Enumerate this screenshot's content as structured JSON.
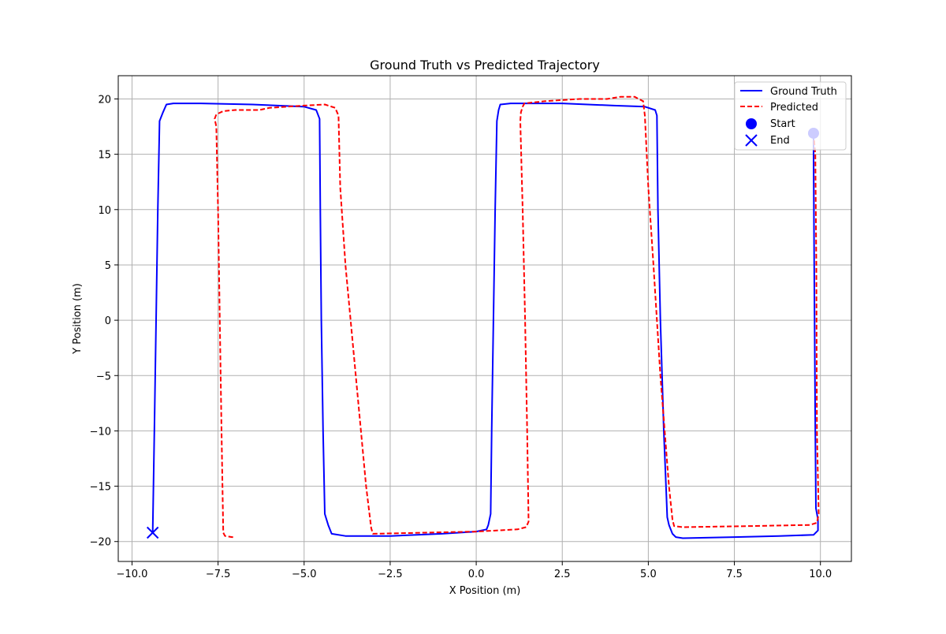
{
  "chart_data": {
    "type": "line",
    "title": "Ground Truth vs Predicted Trajectory",
    "xlabel": "X Position (m)",
    "ylabel": "Y Position (m)",
    "xlim": [
      -10.4,
      10.9
    ],
    "ylim": [
      -21.8,
      22.1
    ],
    "grid": true,
    "legend_position": "top-right",
    "x_ticks": [
      -10.0,
      -7.5,
      -5.0,
      -2.5,
      0.0,
      2.5,
      5.0,
      7.5,
      10.0
    ],
    "x_tick_labels": [
      "−10.0",
      "−7.5",
      "−5.0",
      "−2.5",
      "0.0",
      "2.5",
      "5.0",
      "7.5",
      "10.0"
    ],
    "y_ticks": [
      -20,
      -15,
      -10,
      -5,
      0,
      5,
      10,
      15,
      20
    ],
    "y_tick_labels": [
      "−20",
      "−15",
      "−10",
      "−5",
      "0",
      "5",
      "10",
      "15",
      "20"
    ],
    "series": [
      {
        "name": "Ground Truth",
        "color": "#0000ff",
        "style": "solid",
        "points": [
          [
            9.8,
            16.9
          ],
          [
            9.8,
            15.0
          ],
          [
            9.82,
            5.0
          ],
          [
            9.85,
            -10.0
          ],
          [
            9.87,
            -17.0
          ],
          [
            9.93,
            -18.0
          ],
          [
            9.93,
            -19.0
          ],
          [
            9.8,
            -19.4
          ],
          [
            8.8,
            -19.5
          ],
          [
            7.5,
            -19.6
          ],
          [
            6.0,
            -19.7
          ],
          [
            5.8,
            -19.6
          ],
          [
            5.7,
            -19.3
          ],
          [
            5.6,
            -18.5
          ],
          [
            5.55,
            -17.8
          ],
          [
            5.45,
            -10.0
          ],
          [
            5.35,
            0.0
          ],
          [
            5.28,
            10.0
          ],
          [
            5.25,
            18.5
          ],
          [
            5.2,
            19.0
          ],
          [
            4.9,
            19.3
          ],
          [
            4.0,
            19.4
          ],
          [
            2.5,
            19.6
          ],
          [
            1.0,
            19.6
          ],
          [
            0.7,
            19.5
          ],
          [
            0.65,
            19.0
          ],
          [
            0.6,
            18.0
          ],
          [
            0.55,
            10.0
          ],
          [
            0.5,
            0.0
          ],
          [
            0.45,
            -10.0
          ],
          [
            0.42,
            -17.5
          ],
          [
            0.35,
            -18.5
          ],
          [
            0.3,
            -18.9
          ],
          [
            0.0,
            -19.1
          ],
          [
            -1.0,
            -19.3
          ],
          [
            -2.5,
            -19.5
          ],
          [
            -3.8,
            -19.5
          ],
          [
            -4.2,
            -19.3
          ],
          [
            -4.3,
            -18.5
          ],
          [
            -4.4,
            -17.5
          ],
          [
            -4.45,
            -10.0
          ],
          [
            -4.5,
            0.0
          ],
          [
            -4.53,
            10.0
          ],
          [
            -4.55,
            18.2
          ],
          [
            -4.65,
            19.0
          ],
          [
            -5.0,
            19.3
          ],
          [
            -6.5,
            19.5
          ],
          [
            -8.0,
            19.6
          ],
          [
            -8.8,
            19.6
          ],
          [
            -9.0,
            19.5
          ],
          [
            -9.1,
            18.8
          ],
          [
            -9.2,
            18.0
          ],
          [
            -9.25,
            10.0
          ],
          [
            -9.3,
            0.0
          ],
          [
            -9.35,
            -10.0
          ],
          [
            -9.4,
            -19.2
          ]
        ]
      },
      {
        "name": "Predicted",
        "color": "#ff0000",
        "style": "dashed",
        "points": [
          [
            9.8,
            16.9
          ],
          [
            9.85,
            15.0
          ],
          [
            9.88,
            5.0
          ],
          [
            9.9,
            -10.0
          ],
          [
            9.95,
            -17.5
          ],
          [
            9.9,
            -18.3
          ],
          [
            9.7,
            -18.5
          ],
          [
            8.0,
            -18.6
          ],
          [
            6.0,
            -18.7
          ],
          [
            5.75,
            -18.6
          ],
          [
            5.7,
            -18.0
          ],
          [
            5.6,
            -15.0
          ],
          [
            5.35,
            -5.0
          ],
          [
            5.15,
            5.0
          ],
          [
            5.0,
            12.0
          ],
          [
            4.9,
            18.5
          ],
          [
            4.85,
            19.8
          ],
          [
            4.6,
            20.2
          ],
          [
            4.2,
            20.2
          ],
          [
            3.8,
            20.0
          ],
          [
            3.0,
            20.0
          ],
          [
            2.0,
            19.8
          ],
          [
            1.4,
            19.6
          ],
          [
            1.35,
            19.3
          ],
          [
            1.3,
            18.8
          ],
          [
            1.28,
            18.0
          ],
          [
            1.35,
            10.0
          ],
          [
            1.42,
            0.0
          ],
          [
            1.48,
            -10.0
          ],
          [
            1.52,
            -18.2
          ],
          [
            1.45,
            -18.7
          ],
          [
            1.2,
            -18.9
          ],
          [
            0.0,
            -19.1
          ],
          [
            -1.5,
            -19.2
          ],
          [
            -3.0,
            -19.3
          ],
          [
            -3.05,
            -18.8
          ],
          [
            -3.2,
            -15.0
          ],
          [
            -3.5,
            -5.0
          ],
          [
            -3.8,
            5.0
          ],
          [
            -3.95,
            12.0
          ],
          [
            -4.0,
            18.5
          ],
          [
            -4.1,
            19.2
          ],
          [
            -4.4,
            19.5
          ],
          [
            -5.0,
            19.4
          ],
          [
            -6.0,
            19.2
          ],
          [
            -6.3,
            19.0
          ],
          [
            -7.0,
            19.0
          ],
          [
            -7.35,
            18.9
          ],
          [
            -7.55,
            18.6
          ],
          [
            -7.6,
            18.2
          ],
          [
            -7.55,
            17.5
          ],
          [
            -7.5,
            10.0
          ],
          [
            -7.45,
            0.0
          ],
          [
            -7.4,
            -10.0
          ],
          [
            -7.35,
            -19.2
          ],
          [
            -7.3,
            -19.5
          ],
          [
            -7.1,
            -19.6
          ],
          [
            -7.0,
            -19.6
          ]
        ]
      }
    ],
    "markers": [
      {
        "name": "Start",
        "shape": "circle",
        "x": 9.8,
        "y": 16.9,
        "color": "#0000ff"
      },
      {
        "name": "End",
        "shape": "x",
        "x": -9.4,
        "y": -19.2,
        "color": "#0000ff"
      }
    ]
  }
}
